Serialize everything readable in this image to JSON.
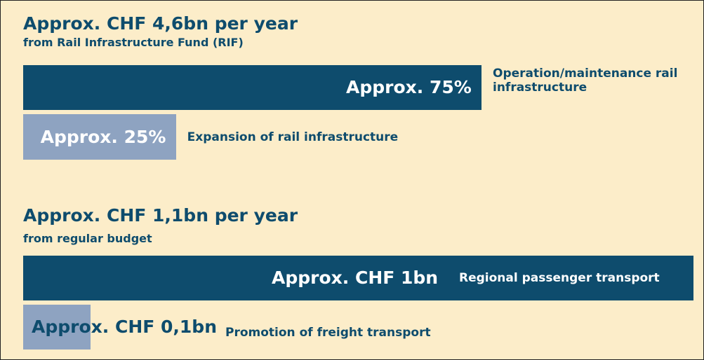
{
  "chart_data": [
    {
      "type": "bar",
      "orientation": "horizontal",
      "title": "Approx. CHF 4,6bn per year",
      "subtitle": "from Rail Infrastructure Fund (RIF)",
      "categories": [
        "Operation/maintenance rail infrastructure",
        "Expansion of rail infrastructure"
      ],
      "values": [
        75,
        25
      ],
      "value_labels": [
        "Approx. 75%",
        "Approx. 25%"
      ],
      "colors": [
        "#0e4c6d",
        "#8ea3c1"
      ]
    },
    {
      "type": "bar",
      "orientation": "horizontal",
      "title": "Approx. CHF 1,1bn per year",
      "subtitle": "from regular budget",
      "categories": [
        "Regional passenger transport",
        "Promotion of freight transport"
      ],
      "values": [
        1,
        0.1
      ],
      "value_labels": [
        "Approx. CHF 1bn",
        "Approx. CHF 0,1bn"
      ],
      "colors": [
        "#0e4c6d",
        "#8ea3c1"
      ]
    }
  ]
}
